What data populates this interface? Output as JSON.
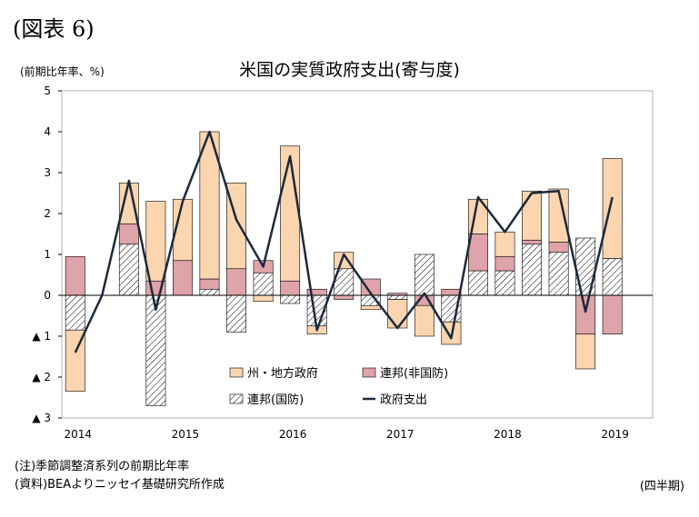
{
  "figure_label": "(図表 6)",
  "notes": {
    "note": "(注)季節調整済系列の前期比年率",
    "source": "(資料)BEAよりニッセイ基礎研究所作成",
    "period": "(四半期)"
  },
  "colors": {
    "state_local": "#fbd5b0",
    "federal_nondefense": "#dfa3aa",
    "federal_defense_hatch": "#000000",
    "government_spending_line": "#1c2a3a",
    "bar_stroke": "#000000"
  },
  "chart_data": {
    "type": "bar",
    "stacked": true,
    "title": "米国の実質政府支出(寄与度)",
    "ylabel": "(前期比年率、%)",
    "ylim": [
      -3,
      5
    ],
    "yticks": [
      {
        "value": 5,
        "label": "5"
      },
      {
        "value": 4,
        "label": "4"
      },
      {
        "value": 3,
        "label": "3"
      },
      {
        "value": 2,
        "label": "2"
      },
      {
        "value": 1,
        "label": "1"
      },
      {
        "value": 0,
        "label": "0"
      },
      {
        "value": -1,
        "label": "▲ 1"
      },
      {
        "value": -2,
        "label": "▲ 2"
      },
      {
        "value": -3,
        "label": "▲ 3"
      }
    ],
    "categories": [
      "2014Q1",
      "2014Q2",
      "2014Q3",
      "2014Q4",
      "2015Q1",
      "2015Q2",
      "2015Q3",
      "2015Q4",
      "2016Q1",
      "2016Q2",
      "2016Q3",
      "2016Q4",
      "2017Q1",
      "2017Q2",
      "2017Q3",
      "2017Q4",
      "2018Q1",
      "2018Q2",
      "2018Q3",
      "2018Q4",
      "2019Q1",
      "2019Q2"
    ],
    "xtick_labels": [
      {
        "index": 0,
        "label": "2014"
      },
      {
        "index": 4,
        "label": "2015"
      },
      {
        "index": 8,
        "label": "2016"
      },
      {
        "index": 12,
        "label": "2017"
      },
      {
        "index": 16,
        "label": "2018"
      },
      {
        "index": 20,
        "label": "2019"
      }
    ],
    "legend_position": "bottom-center",
    "series": [
      {
        "name": "連邦(国防)",
        "type": "bar",
        "pattern": "hatch",
        "values": [
          -0.85,
          0,
          1.25,
          -2.7,
          0,
          0.15,
          -0.9,
          0.55,
          -0.2,
          -0.75,
          0.65,
          -0.25,
          -0.1,
          1.0,
          -0.65,
          0.6,
          0.6,
          1.25,
          1.05,
          1.4,
          0.9,
          0
        ]
      },
      {
        "name": "連邦(非国防)",
        "type": "bar",
        "values": [
          0.95,
          0,
          0.5,
          0.35,
          0.85,
          0.25,
          0.65,
          0.3,
          0.35,
          0.15,
          -0.1,
          0.4,
          0.05,
          -0.25,
          0.15,
          0.9,
          0.35,
          0.1,
          0.25,
          -0.95,
          -0.95,
          0
        ]
      },
      {
        "name": "州・地方政府",
        "type": "bar",
        "values": [
          -1.5,
          0,
          1.0,
          1.95,
          1.5,
          3.6,
          2.1,
          -0.15,
          3.3,
          -0.2,
          0.4,
          -0.1,
          -0.7,
          -0.75,
          -0.55,
          0.85,
          0.6,
          1.2,
          1.3,
          -0.85,
          2.45,
          0
        ]
      },
      {
        "name": "政府支出",
        "type": "line",
        "values": [
          -1.4,
          0,
          2.8,
          -0.35,
          2.3,
          4.0,
          1.85,
          0.7,
          3.4,
          -0.85,
          1.0,
          0.05,
          -0.8,
          0.05,
          -1.05,
          2.4,
          1.55,
          2.5,
          2.55,
          -0.4,
          2.4,
          null
        ]
      }
    ]
  }
}
